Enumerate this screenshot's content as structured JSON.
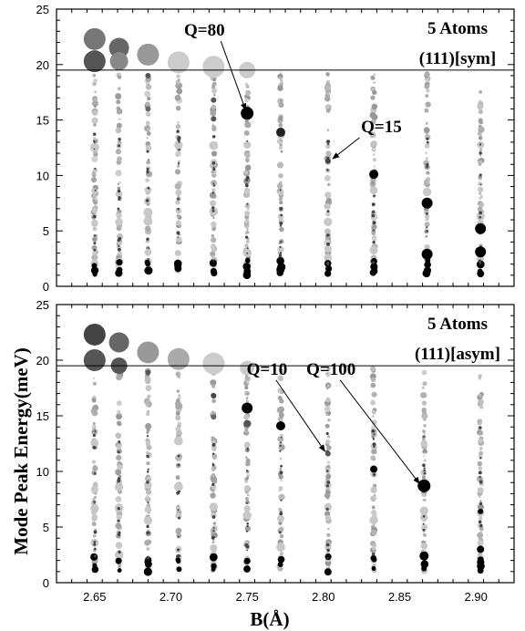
{
  "figure": {
    "ylabel": "Mode Peak Energy(meV)",
    "xlabel": "B(Å)"
  },
  "chart_data": [
    {
      "type": "scatter",
      "title": "",
      "labels": [
        "5 Atoms",
        "(111)[sym]"
      ],
      "xlim": [
        2.625,
        2.925
      ],
      "ylim": [
        0,
        25
      ],
      "xticks": [
        "2.65",
        "2.70",
        "2.75",
        "2.80",
        "2.85",
        "2.90"
      ],
      "yticks": [
        "0",
        "5",
        "10",
        "15",
        "20",
        "25"
      ],
      "hline": 19.5,
      "columns_x": [
        2.65,
        2.666,
        2.685,
        2.705,
        2.728,
        2.75,
        2.772,
        2.803,
        2.833,
        2.868,
        2.903
      ],
      "highlight_points": [
        {
          "x": 2.65,
          "y": 22.3,
          "size": 12,
          "shade": "#777777"
        },
        {
          "x": 2.65,
          "y": 20.3,
          "size": 12,
          "shade": "#555555"
        },
        {
          "x": 2.666,
          "y": 21.5,
          "size": 11,
          "shade": "#666666"
        },
        {
          "x": 2.666,
          "y": 20.3,
          "size": 10,
          "shade": "#888888"
        },
        {
          "x": 2.685,
          "y": 20.9,
          "size": 12,
          "shade": "#999999"
        },
        {
          "x": 2.705,
          "y": 20.2,
          "size": 12,
          "shade": "#cccccc"
        },
        {
          "x": 2.728,
          "y": 19.8,
          "size": 12,
          "shade": "#cccccc"
        },
        {
          "x": 2.75,
          "y": 19.5,
          "size": 9,
          "shade": "#cccccc"
        },
        {
          "x": 2.75,
          "y": 15.6,
          "size": 7,
          "shade": "#000000"
        },
        {
          "x": 2.772,
          "y": 13.9,
          "size": 5,
          "shade": "#222222"
        },
        {
          "x": 2.803,
          "y": 11.3,
          "size": 3,
          "shade": "#444444"
        },
        {
          "x": 2.833,
          "y": 10.1,
          "size": 5,
          "shade": "#000000"
        },
        {
          "x": 2.868,
          "y": 7.5,
          "size": 6,
          "shade": "#000000"
        },
        {
          "x": 2.868,
          "y": 2.9,
          "size": 6,
          "shade": "#000000"
        },
        {
          "x": 2.903,
          "y": 5.2,
          "size": 6,
          "shade": "#000000"
        },
        {
          "x": 2.903,
          "y": 3.1,
          "size": 6,
          "shade": "#000000"
        },
        {
          "x": 2.728,
          "y": 15.1,
          "size": 3,
          "shade": "#555555"
        },
        {
          "x": 2.728,
          "y": 16.8,
          "size": 3,
          "shade": "#555555"
        },
        {
          "x": 2.685,
          "y": 19.0,
          "size": 3,
          "shade": "#555555"
        },
        {
          "x": 2.685,
          "y": 16.0,
          "size": 3,
          "shade": "#666666"
        }
      ],
      "annotations": [
        {
          "text": "Q=80",
          "tx": 2.722,
          "ty": 22.6,
          "ax": 2.749,
          "ay": 15.9
        },
        {
          "text": "Q=15",
          "tx": 2.838,
          "ty": 13.9,
          "ax": 2.806,
          "ay": 11.5
        }
      ]
    },
    {
      "type": "scatter",
      "title": "",
      "labels": [
        "5 Atoms",
        "(111)[asym]"
      ],
      "xlim": [
        2.625,
        2.925
      ],
      "ylim": [
        0,
        25
      ],
      "xticks": [
        "2.65",
        "2.70",
        "2.75",
        "2.80",
        "2.85",
        "2.90"
      ],
      "yticks": [
        "0",
        "5",
        "10",
        "15",
        "20",
        "25"
      ],
      "hline": 19.5,
      "columns_x": [
        2.65,
        2.666,
        2.685,
        2.705,
        2.728,
        2.75,
        2.772,
        2.803,
        2.833,
        2.866,
        2.903
      ],
      "highlight_points": [
        {
          "x": 2.65,
          "y": 22.3,
          "size": 12,
          "shade": "#444444"
        },
        {
          "x": 2.65,
          "y": 20.0,
          "size": 12,
          "shade": "#555555"
        },
        {
          "x": 2.666,
          "y": 21.6,
          "size": 11,
          "shade": "#666666"
        },
        {
          "x": 2.666,
          "y": 19.5,
          "size": 9,
          "shade": "#555555"
        },
        {
          "x": 2.685,
          "y": 20.7,
          "size": 12,
          "shade": "#999999"
        },
        {
          "x": 2.705,
          "y": 20.1,
          "size": 12,
          "shade": "#aaaaaa"
        },
        {
          "x": 2.728,
          "y": 19.7,
          "size": 12,
          "shade": "#cccccc"
        },
        {
          "x": 2.75,
          "y": 19.3,
          "size": 8,
          "shade": "#cccccc"
        },
        {
          "x": 2.75,
          "y": 15.7,
          "size": 6,
          "shade": "#000000"
        },
        {
          "x": 2.75,
          "y": 14.3,
          "size": 4,
          "shade": "#555555"
        },
        {
          "x": 2.772,
          "y": 14.1,
          "size": 5,
          "shade": "#000000"
        },
        {
          "x": 2.803,
          "y": 11.6,
          "size": 3,
          "shade": "#555555"
        },
        {
          "x": 2.833,
          "y": 10.2,
          "size": 4,
          "shade": "#000000"
        },
        {
          "x": 2.866,
          "y": 8.7,
          "size": 7,
          "shade": "#000000"
        },
        {
          "x": 2.866,
          "y": 2.4,
          "size": 5,
          "shade": "#000000"
        },
        {
          "x": 2.903,
          "y": 6.4,
          "size": 3,
          "shade": "#000000"
        },
        {
          "x": 2.903,
          "y": 3.0,
          "size": 4,
          "shade": "#000000"
        },
        {
          "x": 2.728,
          "y": 16.8,
          "size": 3,
          "shade": "#444444"
        },
        {
          "x": 2.728,
          "y": 14.9,
          "size": 3,
          "shade": "#666666"
        },
        {
          "x": 2.685,
          "y": 18.9,
          "size": 3,
          "shade": "#555555"
        }
      ],
      "annotations": [
        {
          "text": "Q=10",
          "tx": 2.763,
          "ty": 18.7,
          "ax": 2.801,
          "ay": 11.8
        },
        {
          "text": "Q=100",
          "tx": 2.805,
          "ty": 18.7,
          "ax": 2.863,
          "ay": 8.9
        }
      ]
    }
  ]
}
